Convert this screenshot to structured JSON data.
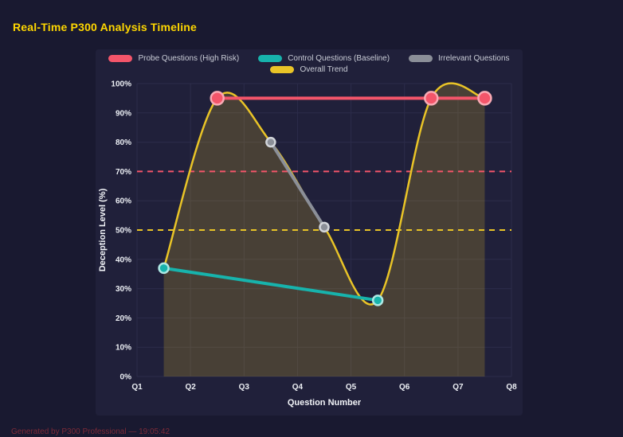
{
  "page": {
    "title": "Real-Time P300 Analysis Timeline",
    "footer": "Generated by P300 Professional — 19:05:42"
  },
  "colors": {
    "background": "#191930",
    "panel": "#20203a",
    "title": "#ffd700",
    "grid": "#2c2c4a",
    "tick_text": "#eceff4",
    "axis_title_text": "#f2f4f8",
    "legend_text": "#c9ccd6",
    "footer_text": "#7d2b38"
  },
  "chart_data": {
    "type": "line",
    "title": "Real-Time P300 Analysis Timeline",
    "xlabel": "Question Number",
    "ylabel": "Deception Level (%)",
    "x_ticks": [
      "Q1",
      "Q2",
      "Q3",
      "Q4",
      "Q5",
      "Q6",
      "Q7",
      "Q8"
    ],
    "x_range": [
      1,
      8
    ],
    "ylim": [
      0,
      100
    ],
    "y_ticks": [
      "0%",
      "10%",
      "20%",
      "30%",
      "40%",
      "50%",
      "60%",
      "70%",
      "80%",
      "90%",
      "100%"
    ],
    "grid": true,
    "legend_position": "top",
    "series": [
      {
        "name": "Probe Questions (High Risk)",
        "color": "#f4556a",
        "point_border": "#f9aab4",
        "line_width": 4,
        "point_radius": 8,
        "points": [
          [
            2.5,
            95
          ],
          [
            6.5,
            95
          ],
          [
            7.5,
            95
          ]
        ]
      },
      {
        "name": "Control Questions (Baseline)",
        "color": "#17b3ac",
        "point_border": "#aee8e4",
        "line_width": 4,
        "point_radius": 6,
        "points": [
          [
            1.5,
            37
          ],
          [
            5.5,
            26
          ]
        ]
      },
      {
        "name": "Irrelevant Questions",
        "color": "#8b8f98",
        "point_border": "#d2d5da",
        "line_width": 4,
        "point_radius": 5.5,
        "points": [
          [
            3.5,
            80
          ],
          [
            4.5,
            51
          ]
        ]
      },
      {
        "name": "Overall Trend",
        "color": "#e9c427",
        "line_width": 2.5,
        "point_radius": 0,
        "smooth": true,
        "fill": true,
        "fill_opacity": 0.2,
        "points": [
          [
            1.5,
            37
          ],
          [
            2.5,
            95
          ],
          [
            3.5,
            80
          ],
          [
            4.5,
            51
          ],
          [
            5.5,
            26
          ],
          [
            6.5,
            95
          ],
          [
            7.5,
            95
          ]
        ]
      }
    ],
    "thresholds": [
      {
        "name": "high-risk-threshold",
        "value": 70,
        "color": "#f4556a",
        "style": "dashed"
      },
      {
        "name": "baseline-threshold",
        "value": 50,
        "color": "#e9c427",
        "style": "dashed"
      }
    ]
  }
}
